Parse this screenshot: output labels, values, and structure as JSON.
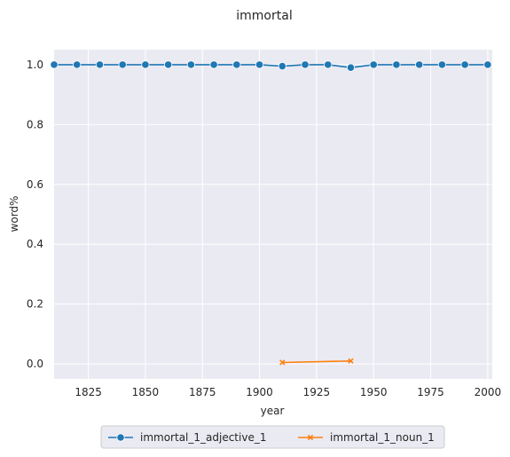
{
  "chart_data": {
    "type": "line",
    "title": "immortal",
    "xlabel": "year",
    "ylabel": "word%",
    "xlim": [
      1810,
      2002
    ],
    "ylim": [
      -0.05,
      1.05
    ],
    "xticks": [
      1825,
      1850,
      1875,
      1900,
      1925,
      1950,
      1975,
      2000
    ],
    "xtick_labels": [
      "1825",
      "1850",
      "1875",
      "1900",
      "1925",
      "1950",
      "1975",
      "2000"
    ],
    "yticks": [
      0.0,
      0.2,
      0.4,
      0.6,
      0.8,
      1.0
    ],
    "ytick_labels": [
      "0.0",
      "0.2",
      "0.4",
      "0.6",
      "0.8",
      "1.0"
    ],
    "grid": true,
    "legend_position": "bottom-center",
    "series": [
      {
        "name": "immortal_1_adjective_1",
        "color": "#1f77b4",
        "marker": "circle",
        "x": [
          1810,
          1820,
          1830,
          1840,
          1850,
          1860,
          1870,
          1880,
          1890,
          1900,
          1910,
          1920,
          1930,
          1940,
          1950,
          1960,
          1970,
          1980,
          1990,
          2000
        ],
        "y": [
          1.0,
          1.0,
          1.0,
          1.0,
          1.0,
          1.0,
          1.0,
          1.0,
          1.0,
          1.0,
          0.995,
          1.0,
          1.0,
          0.99,
          1.0,
          1.0,
          1.0,
          1.0,
          1.0,
          1.0
        ]
      },
      {
        "name": "immortal_1_noun_1",
        "color": "#ff7f0e",
        "marker": "x",
        "x": [
          1910,
          1940
        ],
        "y": [
          0.005,
          0.01
        ]
      }
    ]
  }
}
